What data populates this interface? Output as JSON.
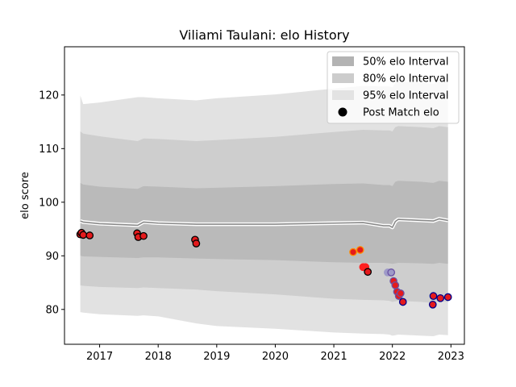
{
  "chart_data": {
    "type": "line",
    "title": "Viliami Taulani: elo History",
    "xlabel": "",
    "ylabel": "elo score",
    "xlim": [
      2016.4,
      2023.23
    ],
    "ylim": [
      73.5,
      129
    ],
    "x_ticks": [
      2017,
      2018,
      2019,
      2020,
      2021,
      2022,
      2023
    ],
    "y_ticks": [
      80,
      90,
      100,
      110,
      120
    ],
    "grid": false,
    "legend_position": "top-right",
    "legend": [
      {
        "label": "50% elo Interval",
        "kind": "patch",
        "color": "#b3b3b3"
      },
      {
        "label": "80% elo Interval",
        "kind": "patch",
        "color": "#cccccc"
      },
      {
        "label": "95% elo Interval",
        "kind": "patch",
        "color": "#e3e3e3"
      },
      {
        "label": "Post Match elo",
        "kind": "marker",
        "color": "#000000"
      }
    ],
    "bands": {
      "x": [
        2016.67,
        2016.72,
        2017.0,
        2017.65,
        2017.75,
        2018.0,
        2018.65,
        2019.0,
        2020.0,
        2021.0,
        2021.5,
        2021.85,
        2021.95,
        2022.0,
        2022.05,
        2022.1,
        2022.5,
        2022.7,
        2022.8,
        2022.95
      ],
      "mean": [
        96.5,
        96.3,
        96.0,
        95.7,
        96.3,
        96.1,
        95.9,
        95.9,
        95.9,
        96.1,
        96.2,
        95.6,
        95.6,
        95.3,
        96.4,
        96.8,
        96.6,
        96.5,
        96.9,
        96.6
      ],
      "band50": {
        "lower": [
          90.0,
          89.9,
          89.8,
          89.6,
          89.7,
          89.7,
          89.5,
          89.4,
          89.2,
          88.8,
          88.7,
          88.7,
          88.6,
          88.5,
          88.6,
          88.7,
          88.6,
          88.5,
          88.7,
          88.5
        ],
        "upper": [
          103.6,
          103.3,
          102.9,
          102.5,
          103.0,
          102.9,
          102.6,
          102.7,
          103.0,
          103.4,
          103.5,
          103.2,
          103.2,
          103.0,
          103.8,
          104.0,
          103.8,
          103.6,
          104.0,
          103.8
        ]
      },
      "band80": {
        "lower": [
          84.5,
          84.4,
          84.2,
          84.0,
          84.1,
          84.0,
          83.7,
          83.4,
          82.8,
          82.0,
          81.8,
          81.7,
          81.6,
          81.4,
          81.5,
          81.6,
          81.4,
          81.2,
          81.5,
          81.4
        ],
        "upper": [
          113.2,
          112.8,
          112.3,
          111.4,
          111.9,
          111.8,
          111.4,
          111.6,
          112.2,
          113.1,
          113.5,
          113.4,
          113.4,
          113.2,
          114.0,
          114.2,
          114.0,
          113.8,
          114.2,
          114.0
        ]
      },
      "band95": {
        "lower": [
          79.5,
          79.4,
          79.1,
          78.8,
          78.9,
          78.7,
          77.4,
          76.9,
          76.4,
          75.7,
          75.5,
          75.4,
          75.3,
          75.1,
          75.2,
          75.3,
          75.1,
          75.0,
          75.3,
          75.2
        ],
        "upper": [
          119.9,
          118.3,
          118.6,
          119.6,
          119.6,
          119.4,
          119.0,
          119.4,
          120.1,
          121.2,
          121.7,
          121.6,
          121.6,
          121.4,
          122.3,
          122.5,
          122.3,
          122.1,
          122.6,
          122.4
        ]
      }
    },
    "series": [
      {
        "name": "Post Match elo",
        "points": [
          {
            "x": 2016.67,
            "y": 94.0,
            "face": "#e41a1c",
            "edge": "#000000"
          },
          {
            "x": 2016.69,
            "y": 94.3,
            "face": "#e41a1c",
            "edge": "#000000"
          },
          {
            "x": 2016.72,
            "y": 93.9,
            "face": "#e41a1c",
            "edge": "#000000"
          },
          {
            "x": 2016.83,
            "y": 93.8,
            "face": "#e41a1c",
            "edge": "#000000"
          },
          {
            "x": 2017.64,
            "y": 94.2,
            "face": "#e41a1c",
            "edge": "#000000"
          },
          {
            "x": 2017.66,
            "y": 93.5,
            "face": "#e41a1c",
            "edge": "#000000"
          },
          {
            "x": 2017.75,
            "y": 93.7,
            "face": "#e41a1c",
            "edge": "#000000"
          },
          {
            "x": 2018.63,
            "y": 93.0,
            "face": "#e41a1c",
            "edge": "#000000"
          },
          {
            "x": 2018.65,
            "y": 92.3,
            "face": "#e41a1c",
            "edge": "#000000"
          },
          {
            "x": 2021.33,
            "y": 90.7,
            "face": "#e41a1c",
            "edge": "#ff8c00"
          },
          {
            "x": 2021.45,
            "y": 91.1,
            "face": "#e41a1c",
            "edge": "#ff8c00"
          },
          {
            "x": 2021.5,
            "y": 87.9,
            "face": "#ff2020",
            "edge": "#ff2020"
          },
          {
            "x": 2021.54,
            "y": 87.9,
            "face": "#ff2020",
            "edge": "#ff2020"
          },
          {
            "x": 2021.58,
            "y": 87.0,
            "face": "#e41a1c",
            "edge": "#000000"
          },
          {
            "x": 2021.92,
            "y": 86.9,
            "face": "#9e9ac8",
            "edge": "#9e9ac8"
          },
          {
            "x": 2021.98,
            "y": 86.9,
            "face": "#9e9ac8",
            "edge": "#6a51a3"
          },
          {
            "x": 2022.02,
            "y": 85.3,
            "face": "#e41a1c",
            "edge": "#6a51a3"
          },
          {
            "x": 2022.05,
            "y": 84.5,
            "face": "#e41a1c",
            "edge": "#6a51a3"
          },
          {
            "x": 2022.08,
            "y": 83.3,
            "face": "#e41a1c",
            "edge": "#6a51a3"
          },
          {
            "x": 2022.11,
            "y": 82.5,
            "face": "#e41a1c",
            "edge": "#6a51a3"
          },
          {
            "x": 2022.14,
            "y": 83.0,
            "face": "#e41a1c",
            "edge": "#6a51a3"
          },
          {
            "x": 2022.18,
            "y": 81.4,
            "face": "#e41a1c",
            "edge": "#00008b"
          },
          {
            "x": 2022.69,
            "y": 80.9,
            "face": "#e41a1c",
            "edge": "#00008b"
          },
          {
            "x": 2022.7,
            "y": 82.5,
            "face": "#e41a1c",
            "edge": "#00008b"
          },
          {
            "x": 2022.82,
            "y": 82.1,
            "face": "#e41a1c",
            "edge": "#00008b"
          },
          {
            "x": 2022.95,
            "y": 82.3,
            "face": "#e41a1c",
            "edge": "#00008b"
          }
        ]
      }
    ]
  }
}
